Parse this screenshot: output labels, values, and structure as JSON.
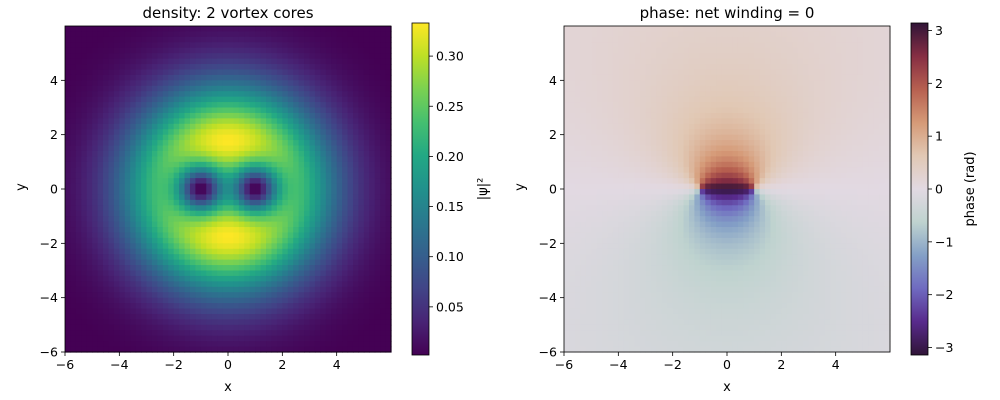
{
  "chart_data": [
    {
      "type": "heatmap",
      "title": "density: 2 vortex cores",
      "xlabel": "x",
      "ylabel": "y",
      "xlim": [
        -6,
        6
      ],
      "ylim": [
        -6,
        6
      ],
      "x_ticks": [
        "−6",
        "−4",
        "−2",
        "0",
        "2",
        "4"
      ],
      "y_ticks": [
        "−6",
        "−4",
        "−2",
        "0",
        "2",
        "4"
      ],
      "grid": false,
      "colormap": "viridis",
      "colorbar": {
        "label": "|ψ|²",
        "range": [
          0.002,
          0.333
        ],
        "ticks": [
          "0.05",
          "0.10",
          "0.15",
          "0.20",
          "0.25",
          "0.30"
        ]
      },
      "features": {
        "vortex_cores": [
          [
            -1,
            0
          ],
          [
            1,
            0
          ]
        ],
        "peak_density": 0.333,
        "peak_locations": [
          [
            0,
            2.6
          ],
          [
            0,
            -2.6
          ]
        ]
      }
    },
    {
      "type": "heatmap",
      "title": "phase: net winding = 0",
      "xlabel": "x",
      "ylabel": "y",
      "xlim": [
        -6,
        6
      ],
      "ylim": [
        -6,
        6
      ],
      "x_ticks": [
        "−6",
        "−4",
        "−2",
        "0",
        "2",
        "4"
      ],
      "y_ticks": [
        "−6",
        "−4",
        "−2",
        "0",
        "2",
        "4"
      ],
      "grid": false,
      "colormap": "twilight_shifted",
      "colorbar": {
        "label": "phase (rad)",
        "range": [
          -3.14159,
          3.14159
        ],
        "ticks": [
          "−3",
          "−2",
          "−1",
          "0",
          "1",
          "2",
          "3"
        ]
      },
      "features": {
        "vortex_cores": [
          [
            -1,
            0
          ],
          [
            1,
            0
          ]
        ],
        "net_winding": 0
      }
    }
  ]
}
